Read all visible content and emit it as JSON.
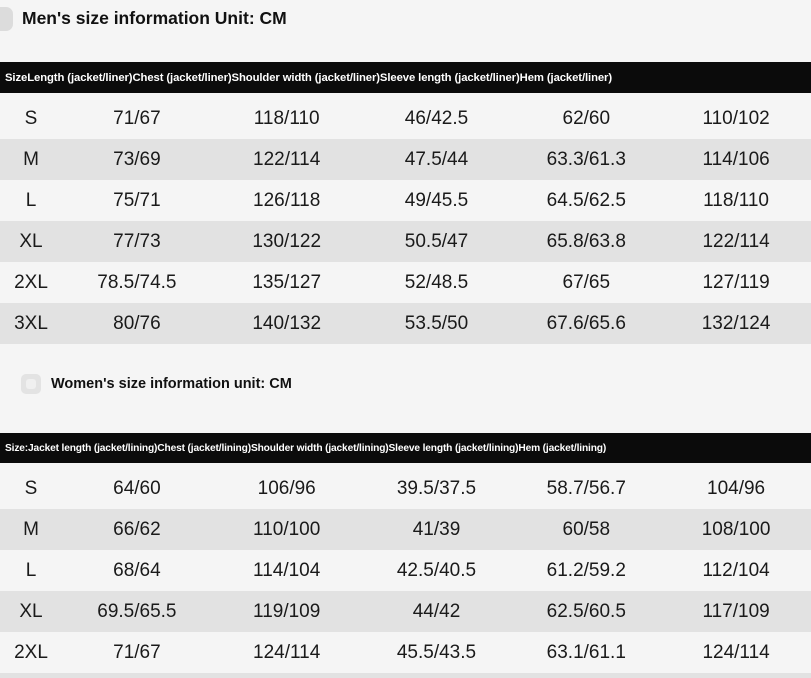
{
  "page": {
    "background": "#f5f5f5",
    "header_bar_color": "#0b0b0b",
    "stripe_color": "#e2e2e2",
    "unit": "CM"
  },
  "icons": {
    "corner_bullet": "image-placeholder-icon",
    "women_bullet": "image-placeholder-icon"
  },
  "men_section": {
    "title": "Men's size information Unit: CM",
    "table": {
      "columns": [
        "Size",
        "Length (jacket/liner)",
        "Chest (jacket/liner)",
        "Shoulder width (jacket/liner)",
        "Sleeve length (jacket/liner)",
        "Hem (jacket/liner)"
      ],
      "rows": [
        [
          "S",
          "71/67",
          "118/110",
          "46/42.5",
          "62/60",
          "110/102"
        ],
        [
          "M",
          "73/69",
          "122/114",
          "47.5/44",
          "63.3/61.3",
          "114/106"
        ],
        [
          "L",
          "75/71",
          "126/118",
          "49/45.5",
          "64.5/62.5",
          "118/110"
        ],
        [
          "XL",
          "77/73",
          "130/122",
          "50.5/47",
          "65.8/63.8",
          "122/114"
        ],
        [
          "2XL",
          "78.5/74.5",
          "135/127",
          "52/48.5",
          "67/65",
          "127/119"
        ],
        [
          "3XL",
          "80/76",
          "140/132",
          "53.5/50",
          "67.6/65.6",
          "132/124"
        ]
      ]
    }
  },
  "women_section": {
    "title": "Women's size information unit: CM",
    "table": {
      "columns": [
        "Size:",
        "Jacket length (jacket/lining)",
        "Chest (jacket/lining)",
        "Shoulder width (jacket/lining)",
        "Sleeve length (jacket/lining)",
        "Hem (jacket/lining)"
      ],
      "rows": [
        [
          "S",
          "64/60",
          "106/96",
          "39.5/37.5",
          "58.7/56.7",
          "104/96"
        ],
        [
          "M",
          "66/62",
          "110/100",
          "41/39",
          "60/58",
          "108/100"
        ],
        [
          "L",
          "68/64",
          "114/104",
          "42.5/40.5",
          "61.2/59.2",
          "112/104"
        ],
        [
          "XL",
          "69.5/65.5",
          "119/109",
          "44/42",
          "62.5/60.5",
          "117/109"
        ],
        [
          "2XL",
          "71/67",
          "124/114",
          "45.5/43.5",
          "63.1/61.1",
          "124/114"
        ]
      ]
    }
  }
}
